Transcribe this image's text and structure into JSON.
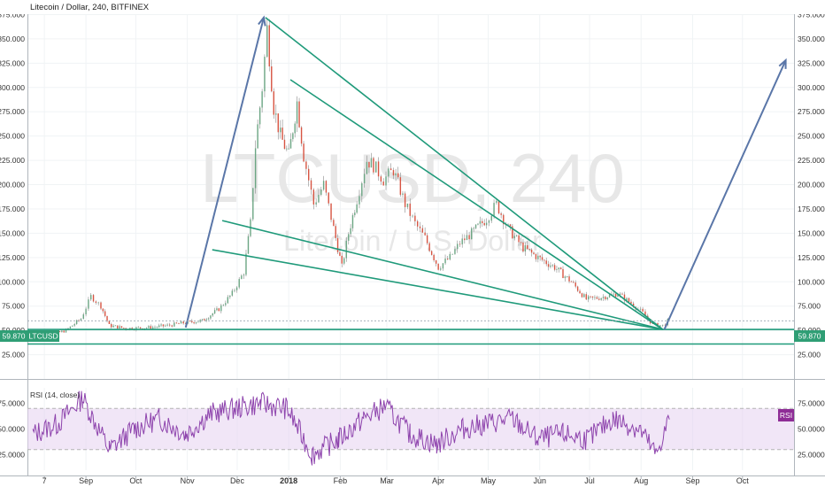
{
  "chart_data": [
    {
      "type": "line",
      "title": "Litecoin / Dollar, 240, BITFINEX",
      "watermark": {
        "symbol": "LTCUSD, 240",
        "description": "Litecoin / U.S. Dollar"
      },
      "symbol_badge": "LTCUSD",
      "last_price_label": "59.870",
      "last_price": 59.87,
      "ylim": [
        0,
        390
      ],
      "y_ticks": [
        "25.000",
        "50.000",
        "75.000",
        "100.000",
        "125.000",
        "150.000",
        "175.000",
        "200.000",
        "225.000",
        "250.000",
        "275.000",
        "300.000",
        "325.000",
        "350.000",
        "375.000"
      ],
      "x_tick_labels": [
        "7",
        "Sep",
        "Oct",
        "Nov",
        "Dec",
        "2018",
        "Feb",
        "Mar",
        "Apr",
        "May",
        "Jun",
        "Jul",
        "Aug",
        "Sep",
        "Oct"
      ],
      "x_tick_dates": [
        "2017-08-07",
        "2017-09-01",
        "2017-10-01",
        "2017-11-01",
        "2017-12-01",
        "2018-01-01",
        "2018-02-01",
        "2018-03-01",
        "2018-04-01",
        "2018-05-01",
        "2018-06-01",
        "2018-07-01",
        "2018-08-01",
        "2018-09-01",
        "2018-10-01"
      ],
      "series": [
        {
          "style": "candles",
          "x": [
            "2017-07-31",
            "2017-08-10",
            "2017-08-20",
            "2017-08-29",
            "2017-09-04",
            "2017-09-10",
            "2017-09-15",
            "2017-09-25",
            "2017-10-10",
            "2017-10-20",
            "2017-10-31",
            "2017-11-10",
            "2017-11-20",
            "2017-11-28",
            "2017-12-05",
            "2017-12-09",
            "2017-12-12",
            "2017-12-16",
            "2017-12-19",
            "2017-12-23",
            "2017-12-27",
            "2018-01-01",
            "2018-01-06",
            "2018-01-10",
            "2018-01-16",
            "2018-01-22",
            "2018-01-28",
            "2018-02-02",
            "2018-02-06",
            "2018-02-11",
            "2018-02-17",
            "2018-02-21",
            "2018-02-27",
            "2018-03-05",
            "2018-03-12",
            "2018-03-18",
            "2018-03-24",
            "2018-04-01",
            "2018-04-08",
            "2018-04-14",
            "2018-04-21",
            "2018-04-30",
            "2018-05-06",
            "2018-05-13",
            "2018-05-22",
            "2018-05-31",
            "2018-06-10",
            "2018-06-20",
            "2018-06-29",
            "2018-07-08",
            "2018-07-18",
            "2018-07-26",
            "2018-08-02",
            "2018-08-08",
            "2018-08-14",
            "2018-08-17"
          ],
          "values": [
            42,
            45,
            50,
            62,
            85,
            75,
            55,
            52,
            53,
            55,
            58,
            60,
            72,
            88,
            110,
            160,
            240,
            300,
            360,
            280,
            250,
            230,
            285,
            230,
            180,
            200,
            155,
            115,
            150,
            185,
            225,
            220,
            205,
            215,
            180,
            160,
            145,
            115,
            125,
            140,
            150,
            165,
            180,
            155,
            135,
            125,
            115,
            100,
            82,
            84,
            88,
            78,
            68,
            56,
            55,
            59.87
          ]
        }
      ],
      "annotations": [
        {
          "kind": "arrow",
          "label": "",
          "points": [
            [
              "2017-10-31",
              53
            ],
            [
              "2017-12-17",
              372
            ]
          ]
        },
        {
          "kind": "trendline",
          "label": "",
          "points": [
            [
              "2017-12-18",
              372
            ],
            [
              "2018-08-14",
              51
            ]
          ]
        },
        {
          "kind": "trendline",
          "label": "",
          "points": [
            [
              "2018-01-02",
              308
            ],
            [
              "2018-08-14",
              51
            ]
          ]
        },
        {
          "kind": "trendline",
          "label": "",
          "points": [
            [
              "2017-11-22",
              163
            ],
            [
              "2018-08-14",
              51
            ]
          ]
        },
        {
          "kind": "trendline",
          "label": "",
          "points": [
            [
              "2017-11-16",
              133
            ],
            [
              "2018-08-14",
              51
            ]
          ]
        },
        {
          "kind": "horizontal",
          "label": "",
          "price": 51
        },
        {
          "kind": "horizontal",
          "label": "",
          "price": 36
        },
        {
          "kind": "arrow",
          "label": "",
          "points": [
            [
              "2018-08-15",
              51
            ],
            [
              "2018-10-27",
              328
            ]
          ]
        }
      ]
    },
    {
      "type": "line",
      "title": "RSI (14, close)",
      "badge": "RSI",
      "ylim": [
        10,
        90
      ],
      "y_ticks": [
        "25.0000",
        "50.0000",
        "75.0000"
      ],
      "band": [
        30,
        70
      ],
      "series": [
        {
          "name": "RSI",
          "x": [
            "2017-07-31",
            "2017-08-15",
            "2017-08-30",
            "2017-09-15",
            "2017-09-30",
            "2017-10-15",
            "2017-10-31",
            "2017-11-15",
            "2017-11-30",
            "2017-12-15",
            "2017-12-31",
            "2018-01-15",
            "2018-01-31",
            "2018-02-15",
            "2018-02-28",
            "2018-03-15",
            "2018-03-31",
            "2018-04-15",
            "2018-04-30",
            "2018-05-15",
            "2018-05-31",
            "2018-06-15",
            "2018-06-30",
            "2018-07-15",
            "2018-07-31",
            "2018-08-10",
            "2018-08-18"
          ],
          "values": [
            45,
            55,
            80,
            30,
            50,
            60,
            45,
            65,
            70,
            75,
            70,
            25,
            40,
            60,
            72,
            45,
            35,
            50,
            55,
            60,
            40,
            45,
            40,
            60,
            50,
            25,
            60
          ]
        }
      ]
    }
  ]
}
